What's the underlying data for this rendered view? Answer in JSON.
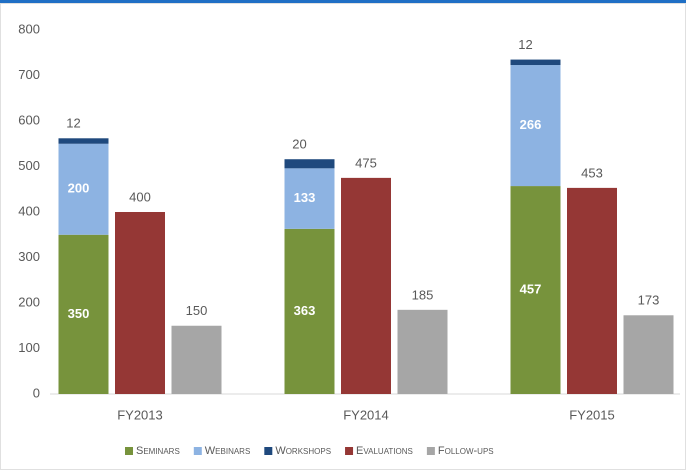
{
  "chart_data": {
    "type": "grouped_stacked_bar",
    "categories": [
      "FY2013",
      "FY2014",
      "FY2015"
    ],
    "series": [
      {
        "name": "Seminars",
        "color": "#77933c",
        "stack": "group",
        "values": [
          350,
          363,
          457
        ]
      },
      {
        "name": "Webinars",
        "color": "#8db3e2",
        "stack": "group",
        "values": [
          200,
          133,
          266
        ]
      },
      {
        "name": "Workshops",
        "color": "#1f497d",
        "stack": "group",
        "values": [
          12,
          20,
          12
        ]
      },
      {
        "name": "Evaluations",
        "color": "#953735",
        "values": [
          400,
          475,
          453
        ]
      },
      {
        "name": "Follow-ups",
        "color": "#a6a6a6",
        "values": [
          150,
          185,
          173
        ]
      }
    ],
    "ylim": [
      0,
      800
    ],
    "yticks": [
      0,
      100,
      200,
      300,
      400,
      500,
      600,
      700,
      800
    ],
    "grid": false,
    "legend": "bottom"
  }
}
